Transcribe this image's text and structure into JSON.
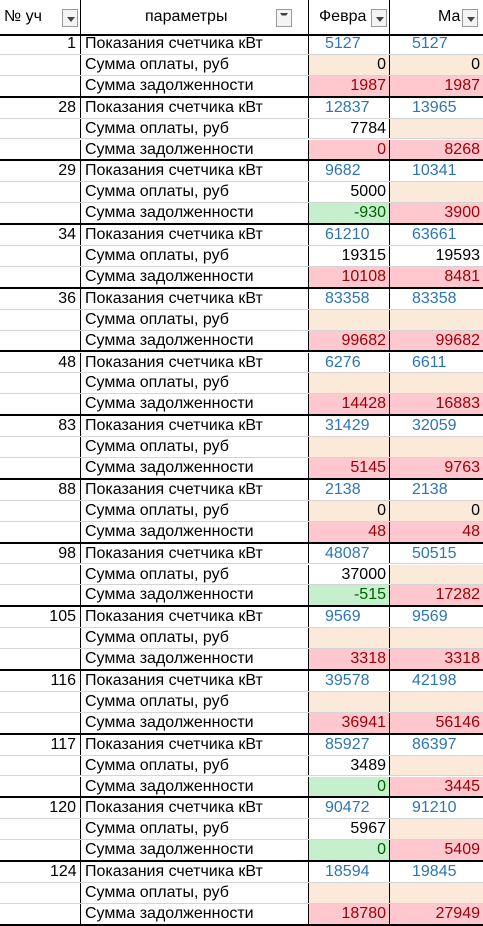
{
  "header": {
    "col_id": "№ уч",
    "col_param": "параметры",
    "col_feb": "Февра",
    "col_mar": "Ма"
  },
  "colors": {
    "meter_text": "#2e75b6",
    "debt_bg": "#ffc7ce",
    "debt_text": "#9c0006",
    "credit_bg": "#c6efce",
    "credit_text": "#006100",
    "payment_bg": "#fbe9da"
  },
  "labels": {
    "meter": "Показания счетчика кВт",
    "payment": "Сумма оплаты, руб",
    "debt": "Сумма задолженности"
  },
  "groups": [
    {
      "id": "1",
      "meter": [
        "5127",
        "5127"
      ],
      "payment": [
        "0",
        "0"
      ],
      "debt": [
        "1987",
        "1987"
      ],
      "debt_state": [
        "r",
        "r"
      ],
      "pay_bg": [
        "p",
        "p"
      ]
    },
    {
      "id": "28",
      "meter": [
        "12837",
        "13965"
      ],
      "payment": [
        "7784",
        ""
      ],
      "debt": [
        "0",
        "8268"
      ],
      "debt_state": [
        "r",
        "r"
      ],
      "pay_bg": [
        "n",
        "p"
      ]
    },
    {
      "id": "29",
      "meter": [
        "9682",
        "10341"
      ],
      "payment": [
        "5000",
        ""
      ],
      "debt": [
        "-930",
        "3900"
      ],
      "debt_state": [
        "g",
        "r"
      ],
      "pay_bg": [
        "n",
        "p"
      ]
    },
    {
      "id": "34",
      "meter": [
        "61210",
        "63661"
      ],
      "payment": [
        "19315",
        "19593"
      ],
      "debt": [
        "10108",
        "8481"
      ],
      "debt_state": [
        "r",
        "r"
      ],
      "pay_bg": [
        "n",
        "n"
      ]
    },
    {
      "id": "36",
      "meter": [
        "83358",
        "83358"
      ],
      "payment": [
        "",
        ""
      ],
      "debt": [
        "99682",
        "99682"
      ],
      "debt_state": [
        "r",
        "r"
      ],
      "pay_bg": [
        "p",
        "p"
      ]
    },
    {
      "id": "48",
      "meter": [
        "6276",
        "6611"
      ],
      "payment": [
        "",
        ""
      ],
      "debt": [
        "14428",
        "16883"
      ],
      "debt_state": [
        "r",
        "r"
      ],
      "pay_bg": [
        "p",
        "p"
      ]
    },
    {
      "id": "83",
      "meter": [
        "31429",
        "32059"
      ],
      "payment": [
        "",
        ""
      ],
      "debt": [
        "5145",
        "9763"
      ],
      "debt_state": [
        "r",
        "r"
      ],
      "pay_bg": [
        "p",
        "p"
      ]
    },
    {
      "id": "88",
      "meter": [
        "2138",
        "2138"
      ],
      "payment": [
        "0",
        "0"
      ],
      "debt": [
        "48",
        "48"
      ],
      "debt_state": [
        "r",
        "r"
      ],
      "pay_bg": [
        "p",
        "p"
      ]
    },
    {
      "id": "98",
      "meter": [
        "48087",
        "50515"
      ],
      "payment": [
        "37000",
        ""
      ],
      "debt": [
        "-515",
        "17282"
      ],
      "debt_state": [
        "g",
        "r"
      ],
      "pay_bg": [
        "n",
        "p"
      ]
    },
    {
      "id": "105",
      "meter": [
        "9569",
        "9569"
      ],
      "payment": [
        "",
        ""
      ],
      "debt": [
        "3318",
        "3318"
      ],
      "debt_state": [
        "r",
        "r"
      ],
      "pay_bg": [
        "p",
        "p"
      ]
    },
    {
      "id": "116",
      "meter": [
        "39578",
        "42198"
      ],
      "payment": [
        "",
        ""
      ],
      "debt": [
        "36941",
        "56146"
      ],
      "debt_state": [
        "r",
        "r"
      ],
      "pay_bg": [
        "p",
        "p"
      ]
    },
    {
      "id": "117",
      "meter": [
        "85927",
        "86397"
      ],
      "payment": [
        "3489",
        ""
      ],
      "debt": [
        "0",
        "3445"
      ],
      "debt_state": [
        "g",
        "r"
      ],
      "pay_bg": [
        "n",
        "p"
      ]
    },
    {
      "id": "120",
      "meter": [
        "90472",
        "91210"
      ],
      "payment": [
        "5967",
        ""
      ],
      "debt": [
        "0",
        "5409"
      ],
      "debt_state": [
        "g",
        "r"
      ],
      "pay_bg": [
        "n",
        "p"
      ]
    },
    {
      "id": "124",
      "meter": [
        "18594",
        "19845"
      ],
      "payment": [
        "",
        ""
      ],
      "debt": [
        "18780",
        "27949"
      ],
      "debt_state": [
        "r",
        "r"
      ],
      "pay_bg": [
        "p",
        "p"
      ],
      "id_left": true
    }
  ]
}
